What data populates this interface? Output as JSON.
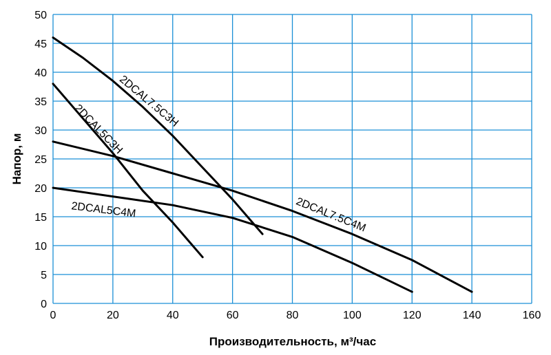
{
  "chart_data": {
    "type": "line",
    "title": "",
    "xlabel": "Производительность, м³/час",
    "ylabel": "Напор, м",
    "xlim": [
      0,
      160
    ],
    "ylim": [
      0,
      50
    ],
    "x_ticks": [
      0,
      20,
      40,
      60,
      80,
      100,
      120,
      140,
      160
    ],
    "y_ticks": [
      0,
      5,
      10,
      15,
      20,
      25,
      30,
      35,
      40,
      45,
      50
    ],
    "grid": true,
    "grid_color": "#1a8fd6",
    "line_color": "#000000",
    "series": [
      {
        "name": "2DCAL7.5C3H",
        "x": [
          0,
          10,
          20,
          30,
          40,
          50,
          60,
          65,
          70
        ],
        "y": [
          46,
          42.5,
          38.5,
          34,
          29,
          23.5,
          18,
          15,
          12
        ]
      },
      {
        "name": "2DCAL5C3H",
        "x": [
          0,
          10,
          20,
          30,
          40,
          45,
          50
        ],
        "y": [
          38,
          32,
          26,
          19.5,
          14,
          11,
          8
        ]
      },
      {
        "name": "2DCAL7.5C4M",
        "x": [
          0,
          20,
          40,
          60,
          80,
          100,
          120,
          140
        ],
        "y": [
          28,
          25.5,
          22.5,
          19.5,
          16,
          12,
          7.5,
          2
        ]
      },
      {
        "name": "2DCAL5C4M",
        "x": [
          0,
          20,
          40,
          60,
          80,
          100,
          120
        ],
        "y": [
          20,
          18.5,
          17,
          14.8,
          11.5,
          7,
          2
        ]
      }
    ]
  }
}
